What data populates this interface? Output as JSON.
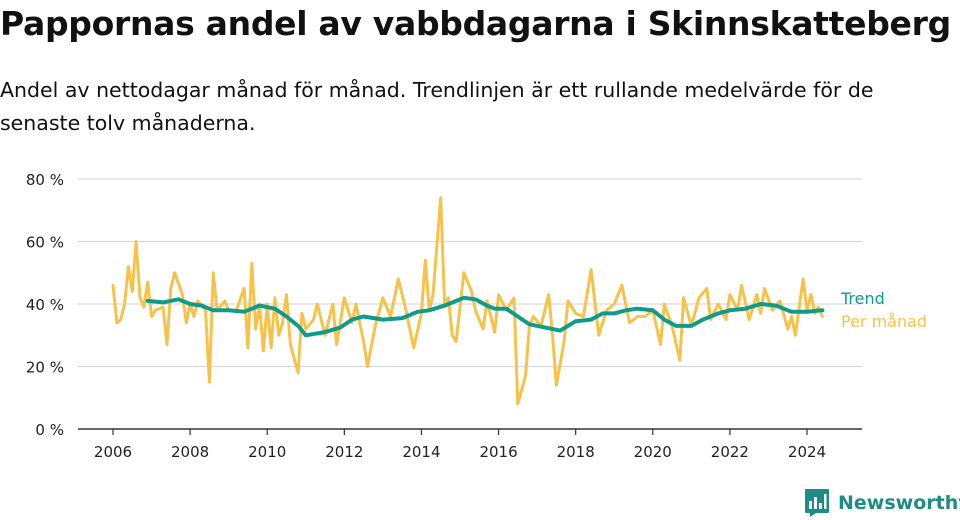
{
  "title": "Pappornas andel av vabbdagarna i Skinnskatteberg",
  "subtitle": "Andel av nettodagar månad för månad. Trendlinjen är ett rullande medelvärde för de senaste tolv månaderna.",
  "brand": {
    "name": "Newsworthy",
    "icon": "newsworthy-bar-chart-logo-icon",
    "color": "#1e8c84"
  },
  "colors": {
    "trend": "#0f9b8a",
    "monthly": "#f8c24a",
    "grid": "#d9d9d9",
    "axis": "#333333"
  },
  "chart_data": {
    "type": "line",
    "xlim": [
      2006,
      2024.5
    ],
    "ylim": [
      0,
      80
    ],
    "grid": true,
    "legend": "right",
    "x_ticks": [
      2006,
      2008,
      2010,
      2012,
      2014,
      2016,
      2018,
      2020,
      2022,
      2024
    ],
    "x_tick_labels": [
      "2006",
      "2008",
      "2010",
      "2012",
      "2014",
      "2016",
      "2018",
      "2020",
      "2022",
      "2024"
    ],
    "y_ticks": [
      0,
      20,
      40,
      60,
      80
    ],
    "y_tick_labels": [
      "0 %",
      "20 %",
      "40 %",
      "60 %",
      "80 %"
    ],
    "series": [
      {
        "name": "Trend",
        "color": "#0f9b8a",
        "points": [
          [
            2006.9,
            41
          ],
          [
            2007.3,
            40.5
          ],
          [
            2007.7,
            41.5
          ],
          [
            2008.0,
            40
          ],
          [
            2008.3,
            39.5
          ],
          [
            2008.6,
            38
          ],
          [
            2009.0,
            38
          ],
          [
            2009.4,
            37.5
          ],
          [
            2009.8,
            39.5
          ],
          [
            2010.2,
            38.5
          ],
          [
            2010.5,
            36
          ],
          [
            2010.8,
            33
          ],
          [
            2011.0,
            30
          ],
          [
            2011.5,
            31
          ],
          [
            2011.9,
            32.5
          ],
          [
            2012.2,
            35
          ],
          [
            2012.5,
            36
          ],
          [
            2013.0,
            35
          ],
          [
            2013.5,
            35.5
          ],
          [
            2013.9,
            37.5
          ],
          [
            2014.2,
            38
          ],
          [
            2014.6,
            39.5
          ],
          [
            2014.9,
            41
          ],
          [
            2015.1,
            42
          ],
          [
            2015.4,
            41.5
          ],
          [
            2015.7,
            39.5
          ],
          [
            2015.9,
            38.5
          ],
          [
            2016.2,
            38.5
          ],
          [
            2016.5,
            36
          ],
          [
            2016.8,
            33.5
          ],
          [
            2017.2,
            32.5
          ],
          [
            2017.6,
            31.5
          ],
          [
            2018.0,
            34.5
          ],
          [
            2018.4,
            35
          ],
          [
            2018.7,
            37
          ],
          [
            2019.0,
            37
          ],
          [
            2019.3,
            38
          ],
          [
            2019.6,
            38.5
          ],
          [
            2020.0,
            38
          ],
          [
            2020.3,
            35
          ],
          [
            2020.6,
            33
          ],
          [
            2021.0,
            33
          ],
          [
            2021.3,
            35
          ],
          [
            2021.7,
            37
          ],
          [
            2022.0,
            38
          ],
          [
            2022.4,
            38.5
          ],
          [
            2022.8,
            40
          ],
          [
            2023.2,
            39.5
          ],
          [
            2023.6,
            37.5
          ],
          [
            2024.0,
            37.5
          ],
          [
            2024.4,
            38
          ]
        ]
      },
      {
        "name": "Per månad",
        "color": "#f8c24a",
        "points": [
          [
            2006.0,
            46
          ],
          [
            2006.1,
            34
          ],
          [
            2006.2,
            35
          ],
          [
            2006.3,
            40
          ],
          [
            2006.4,
            52
          ],
          [
            2006.5,
            44
          ],
          [
            2006.6,
            60
          ],
          [
            2006.7,
            42
          ],
          [
            2006.8,
            39
          ],
          [
            2006.9,
            47
          ],
          [
            2007.0,
            36
          ],
          [
            2007.1,
            38
          ],
          [
            2007.3,
            39
          ],
          [
            2007.4,
            27
          ],
          [
            2007.5,
            45
          ],
          [
            2007.6,
            50
          ],
          [
            2007.8,
            43
          ],
          [
            2007.9,
            34
          ],
          [
            2008.0,
            40
          ],
          [
            2008.1,
            36
          ],
          [
            2008.2,
            41
          ],
          [
            2008.4,
            38
          ],
          [
            2008.5,
            15
          ],
          [
            2008.6,
            50
          ],
          [
            2008.7,
            38
          ],
          [
            2008.9,
            41
          ],
          [
            2009.0,
            38
          ],
          [
            2009.2,
            38
          ],
          [
            2009.4,
            45
          ],
          [
            2009.5,
            26
          ],
          [
            2009.6,
            53
          ],
          [
            2009.7,
            32
          ],
          [
            2009.8,
            40
          ],
          [
            2009.9,
            25
          ],
          [
            2010.0,
            40
          ],
          [
            2010.1,
            26
          ],
          [
            2010.2,
            42
          ],
          [
            2010.3,
            30
          ],
          [
            2010.4,
            34
          ],
          [
            2010.5,
            43
          ],
          [
            2010.6,
            27
          ],
          [
            2010.8,
            18
          ],
          [
            2010.9,
            37
          ],
          [
            2011.0,
            32
          ],
          [
            2011.2,
            35
          ],
          [
            2011.3,
            40
          ],
          [
            2011.5,
            30
          ],
          [
            2011.7,
            40
          ],
          [
            2011.8,
            27
          ],
          [
            2012.0,
            42
          ],
          [
            2012.2,
            34
          ],
          [
            2012.3,
            40
          ],
          [
            2012.5,
            28
          ],
          [
            2012.6,
            20
          ],
          [
            2012.8,
            33
          ],
          [
            2013.0,
            42
          ],
          [
            2013.2,
            36
          ],
          [
            2013.4,
            48
          ],
          [
            2013.6,
            38
          ],
          [
            2013.8,
            26
          ],
          [
            2014.0,
            37
          ],
          [
            2014.1,
            54
          ],
          [
            2014.2,
            38
          ],
          [
            2014.3,
            43
          ],
          [
            2014.5,
            74
          ],
          [
            2014.6,
            40
          ],
          [
            2014.7,
            42
          ],
          [
            2014.8,
            30
          ],
          [
            2014.9,
            28
          ],
          [
            2015.1,
            50
          ],
          [
            2015.3,
            44
          ],
          [
            2015.4,
            38
          ],
          [
            2015.6,
            32
          ],
          [
            2015.7,
            41
          ],
          [
            2015.9,
            31
          ],
          [
            2016.0,
            43
          ],
          [
            2016.2,
            38
          ],
          [
            2016.4,
            42
          ],
          [
            2016.5,
            8
          ],
          [
            2016.7,
            17
          ],
          [
            2016.8,
            33
          ],
          [
            2016.9,
            36
          ],
          [
            2017.1,
            33
          ],
          [
            2017.3,
            43
          ],
          [
            2017.4,
            30
          ],
          [
            2017.5,
            14
          ],
          [
            2017.7,
            28
          ],
          [
            2017.8,
            41
          ],
          [
            2018.0,
            37
          ],
          [
            2018.2,
            36
          ],
          [
            2018.4,
            51
          ],
          [
            2018.6,
            30
          ],
          [
            2018.8,
            38
          ],
          [
            2019.0,
            40
          ],
          [
            2019.2,
            46
          ],
          [
            2019.4,
            34
          ],
          [
            2019.6,
            36
          ],
          [
            2019.8,
            36
          ],
          [
            2020.0,
            38
          ],
          [
            2020.2,
            27
          ],
          [
            2020.3,
            40
          ],
          [
            2020.5,
            33
          ],
          [
            2020.7,
            22
          ],
          [
            2020.8,
            42
          ],
          [
            2021.0,
            33
          ],
          [
            2021.2,
            42
          ],
          [
            2021.4,
            45
          ],
          [
            2021.5,
            35
          ],
          [
            2021.7,
            40
          ],
          [
            2021.9,
            35
          ],
          [
            2022.0,
            43
          ],
          [
            2022.2,
            38
          ],
          [
            2022.3,
            46
          ],
          [
            2022.5,
            35
          ],
          [
            2022.7,
            43
          ],
          [
            2022.8,
            37
          ],
          [
            2022.9,
            45
          ],
          [
            2023.1,
            38
          ],
          [
            2023.3,
            41
          ],
          [
            2023.5,
            32
          ],
          [
            2023.6,
            36
          ],
          [
            2023.7,
            30
          ],
          [
            2023.9,
            48
          ],
          [
            2024.0,
            38
          ],
          [
            2024.1,
            43
          ],
          [
            2024.2,
            37
          ],
          [
            2024.3,
            39
          ],
          [
            2024.4,
            36
          ]
        ]
      }
    ]
  }
}
